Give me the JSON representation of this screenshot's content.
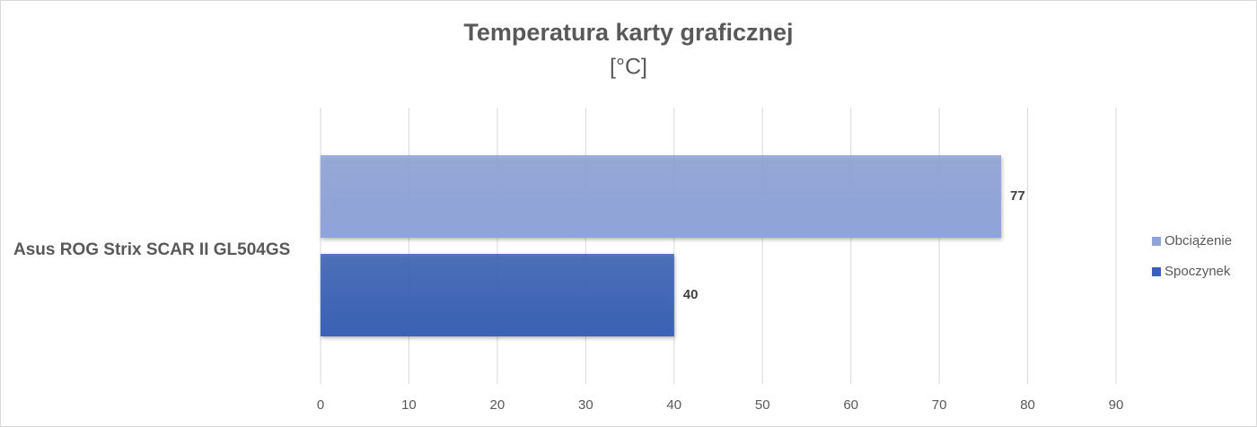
{
  "chart_data": {
    "type": "bar",
    "horizontal": true,
    "title": "Temperatura karty graficznej",
    "subtitle": "[°C]",
    "categories": [
      "Asus ROG Strix SCAR II GL504GS"
    ],
    "series": [
      {
        "name": "Obciążenie",
        "color": "#8ea3d9",
        "values": [
          77
        ]
      },
      {
        "name": "Spoczynek",
        "color": "#3961b5",
        "values": [
          40
        ]
      }
    ],
    "xlim": [
      0,
      90
    ],
    "xticks": [
      0,
      10,
      20,
      30,
      40,
      50,
      60,
      70,
      80,
      90
    ],
    "grid": true,
    "legend": "right"
  }
}
